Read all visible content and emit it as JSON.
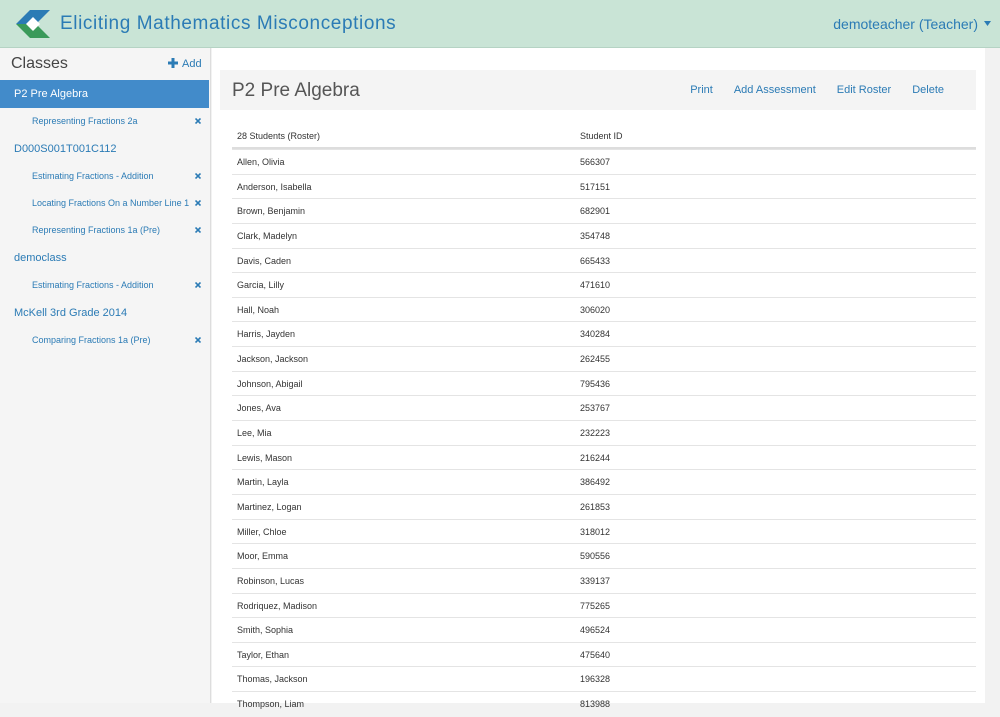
{
  "header": {
    "title": "Eliciting Mathematics Misconceptions",
    "user": "demoteacher (Teacher)"
  },
  "sidebar": {
    "title": "Classes",
    "add": "Add",
    "classes": [
      {
        "name": "P2 Pre Algebra",
        "assessments": [
          "Representing Fractions 2a"
        ]
      },
      {
        "name": "D000S001T001C112",
        "assessments": [
          "Estimating Fractions - Addition",
          "Locating Fractions On a Number Line 1",
          "Representing Fractions 1a (Pre)"
        ]
      },
      {
        "name": "democlass",
        "assessments": [
          "Estimating Fractions - Addition"
        ]
      },
      {
        "name": "McKell 3rd Grade 2014",
        "assessments": [
          "Comparing Fractions 1a (Pre)"
        ]
      }
    ]
  },
  "main": {
    "title": "P2 Pre Algebra",
    "actions": [
      "Print",
      "Add Assessment",
      "Edit Roster",
      "Delete"
    ],
    "table": {
      "columns": [
        "28 Students (Roster)",
        "Student ID"
      ],
      "rows": [
        [
          "Allen, Olivia",
          "566307"
        ],
        [
          "Anderson, Isabella",
          "517151"
        ],
        [
          "Brown, Benjamin",
          "682901"
        ],
        [
          "Clark, Madelyn",
          "354748"
        ],
        [
          "Davis, Caden",
          "665433"
        ],
        [
          "Garcia, Lilly",
          "471610"
        ],
        [
          "Hall, Noah",
          "306020"
        ],
        [
          "Harris, Jayden",
          "340284"
        ],
        [
          "Jackson, Jackson",
          "262455"
        ],
        [
          "Johnson, Abigail",
          "795436"
        ],
        [
          "Jones, Ava",
          "253767"
        ],
        [
          "Lee, Mia",
          "232223"
        ],
        [
          "Lewis, Mason",
          "216244"
        ],
        [
          "Martin, Layla",
          "386492"
        ],
        [
          "Martinez, Logan",
          "261853"
        ],
        [
          "Miller, Chloe",
          "318012"
        ],
        [
          "Moor, Emma",
          "590556"
        ],
        [
          "Robinson, Lucas",
          "339137"
        ],
        [
          "Rodriquez, Madison",
          "775265"
        ],
        [
          "Smith, Sophia",
          "496524"
        ],
        [
          "Taylor, Ethan",
          "475640"
        ],
        [
          "Thomas, Jackson",
          "196328"
        ],
        [
          "Thompson, Liam",
          "813988"
        ]
      ]
    }
  }
}
